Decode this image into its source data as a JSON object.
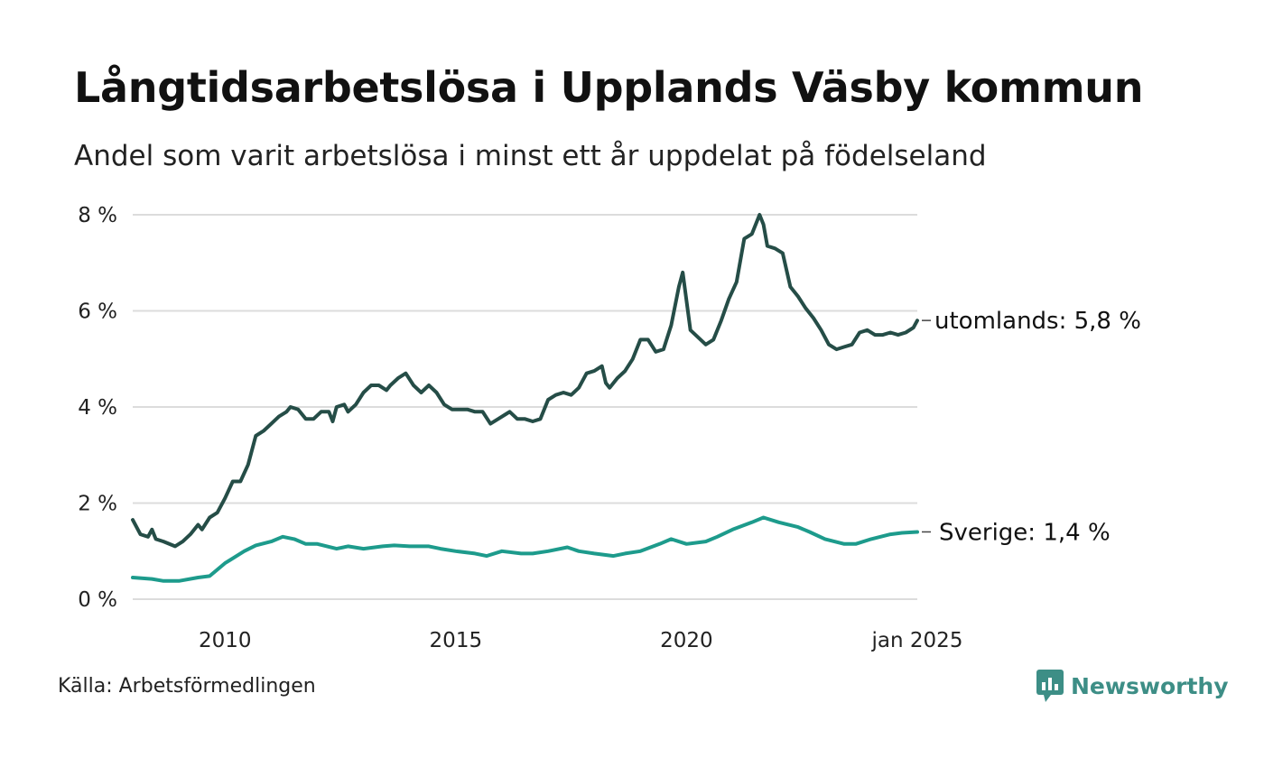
{
  "title": "Långtidsarbetslösa i Upplands Väsby kommun",
  "subtitle": "Andel som varit arbetslösa i minst ett år uppdelat på födelseland",
  "source": "Källa: Arbetsförmedlingen",
  "brand": {
    "name": "Newsworthy",
    "icon": "newsworthy-logo-icon",
    "color": "#3d8e86"
  },
  "chart_data": {
    "type": "line",
    "x_start": "2008-01",
    "x_end": "2025-01",
    "x_tick_labels": [
      "2010",
      "2015",
      "2020",
      "jan 2025"
    ],
    "x_tick_values": [
      "2010-01",
      "2015-01",
      "2020-01",
      "2025-01"
    ],
    "y_tick_labels": [
      "0 %",
      "2 %",
      "4 %",
      "6 %",
      "8 %"
    ],
    "y_tick_values": [
      0,
      2,
      4,
      6,
      8
    ],
    "ylim": [
      0,
      8
    ],
    "grid": true,
    "series": [
      {
        "name": "utomlands",
        "end_label": "utomlands: 5,8 %",
        "color": "#254d47",
        "points": [
          [
            "2008-01",
            1.65
          ],
          [
            "2008-03",
            1.35
          ],
          [
            "2008-05",
            1.3
          ],
          [
            "2008-06",
            1.45
          ],
          [
            "2008-07",
            1.25
          ],
          [
            "2008-09",
            1.2
          ],
          [
            "2008-12",
            1.1
          ],
          [
            "2009-02",
            1.2
          ],
          [
            "2009-04",
            1.35
          ],
          [
            "2009-06",
            1.55
          ],
          [
            "2009-07",
            1.45
          ],
          [
            "2009-09",
            1.7
          ],
          [
            "2009-11",
            1.8
          ],
          [
            "2010-01",
            2.1
          ],
          [
            "2010-03",
            2.45
          ],
          [
            "2010-05",
            2.45
          ],
          [
            "2010-07",
            2.8
          ],
          [
            "2010-09",
            3.4
          ],
          [
            "2010-11",
            3.5
          ],
          [
            "2011-01",
            3.65
          ],
          [
            "2011-03",
            3.8
          ],
          [
            "2011-05",
            3.9
          ],
          [
            "2011-06",
            4.0
          ],
          [
            "2011-08",
            3.95
          ],
          [
            "2011-10",
            3.75
          ],
          [
            "2011-12",
            3.75
          ],
          [
            "2012-02",
            3.9
          ],
          [
            "2012-04",
            3.9
          ],
          [
            "2012-05",
            3.7
          ],
          [
            "2012-06",
            4.0
          ],
          [
            "2012-08",
            4.05
          ],
          [
            "2012-09",
            3.9
          ],
          [
            "2012-11",
            4.05
          ],
          [
            "2013-01",
            4.3
          ],
          [
            "2013-03",
            4.45
          ],
          [
            "2013-05",
            4.45
          ],
          [
            "2013-07",
            4.35
          ],
          [
            "2013-08",
            4.45
          ],
          [
            "2013-10",
            4.6
          ],
          [
            "2013-12",
            4.7
          ],
          [
            "2014-02",
            4.45
          ],
          [
            "2014-04",
            4.3
          ],
          [
            "2014-06",
            4.45
          ],
          [
            "2014-08",
            4.3
          ],
          [
            "2014-10",
            4.05
          ],
          [
            "2014-12",
            3.95
          ],
          [
            "2015-02",
            3.95
          ],
          [
            "2015-04",
            3.95
          ],
          [
            "2015-06",
            3.9
          ],
          [
            "2015-08",
            3.9
          ],
          [
            "2015-10",
            3.65
          ],
          [
            "2015-12",
            3.75
          ],
          [
            "2016-02",
            3.85
          ],
          [
            "2016-03",
            3.9
          ],
          [
            "2016-05",
            3.75
          ],
          [
            "2016-07",
            3.75
          ],
          [
            "2016-09",
            3.7
          ],
          [
            "2016-11",
            3.75
          ],
          [
            "2017-01",
            4.15
          ],
          [
            "2017-03",
            4.25
          ],
          [
            "2017-05",
            4.3
          ],
          [
            "2017-07",
            4.25
          ],
          [
            "2017-09",
            4.4
          ],
          [
            "2017-11",
            4.7
          ],
          [
            "2018-01",
            4.75
          ],
          [
            "2018-03",
            4.85
          ],
          [
            "2018-04",
            4.5
          ],
          [
            "2018-05",
            4.4
          ],
          [
            "2018-07",
            4.6
          ],
          [
            "2018-09",
            4.75
          ],
          [
            "2018-11",
            5.0
          ],
          [
            "2019-01",
            5.4
          ],
          [
            "2019-03",
            5.4
          ],
          [
            "2019-05",
            5.15
          ],
          [
            "2019-07",
            5.2
          ],
          [
            "2019-09",
            5.7
          ],
          [
            "2019-11",
            6.5
          ],
          [
            "2019-12",
            6.8
          ],
          [
            "2020-02",
            5.6
          ],
          [
            "2020-04",
            5.45
          ],
          [
            "2020-06",
            5.3
          ],
          [
            "2020-08",
            5.4
          ],
          [
            "2020-10",
            5.8
          ],
          [
            "2020-12",
            6.25
          ],
          [
            "2021-02",
            6.6
          ],
          [
            "2021-04",
            7.5
          ],
          [
            "2021-06",
            7.6
          ],
          [
            "2021-08",
            8.0
          ],
          [
            "2021-09",
            7.8
          ],
          [
            "2021-10",
            7.35
          ],
          [
            "2021-12",
            7.3
          ],
          [
            "2022-02",
            7.2
          ],
          [
            "2022-04",
            6.5
          ],
          [
            "2022-06",
            6.3
          ],
          [
            "2022-08",
            6.05
          ],
          [
            "2022-10",
            5.85
          ],
          [
            "2022-12",
            5.6
          ],
          [
            "2023-02",
            5.3
          ],
          [
            "2023-04",
            5.2
          ],
          [
            "2023-06",
            5.25
          ],
          [
            "2023-08",
            5.3
          ],
          [
            "2023-10",
            5.55
          ],
          [
            "2023-12",
            5.6
          ],
          [
            "2024-02",
            5.5
          ],
          [
            "2024-04",
            5.5
          ],
          [
            "2024-06",
            5.55
          ],
          [
            "2024-08",
            5.5
          ],
          [
            "2024-10",
            5.55
          ],
          [
            "2024-12",
            5.65
          ],
          [
            "2025-01",
            5.8
          ]
        ]
      },
      {
        "name": "Sverige",
        "end_label": "Sverige: 1,4 %",
        "color": "#1d9b8c",
        "points": [
          [
            "2008-01",
            0.45
          ],
          [
            "2008-06",
            0.42
          ],
          [
            "2008-09",
            0.38
          ],
          [
            "2009-01",
            0.38
          ],
          [
            "2009-06",
            0.45
          ],
          [
            "2009-09",
            0.48
          ],
          [
            "2010-01",
            0.75
          ],
          [
            "2010-06",
            1.0
          ],
          [
            "2010-09",
            1.12
          ],
          [
            "2011-01",
            1.2
          ],
          [
            "2011-04",
            1.3
          ],
          [
            "2011-07",
            1.25
          ],
          [
            "2011-10",
            1.15
          ],
          [
            "2012-01",
            1.15
          ],
          [
            "2012-06",
            1.05
          ],
          [
            "2012-09",
            1.1
          ],
          [
            "2013-01",
            1.05
          ],
          [
            "2013-06",
            1.1
          ],
          [
            "2013-09",
            1.12
          ],
          [
            "2014-01",
            1.1
          ],
          [
            "2014-06",
            1.1
          ],
          [
            "2014-09",
            1.05
          ],
          [
            "2015-01",
            1.0
          ],
          [
            "2015-06",
            0.95
          ],
          [
            "2015-09",
            0.9
          ],
          [
            "2016-01",
            1.0
          ],
          [
            "2016-06",
            0.95
          ],
          [
            "2016-09",
            0.95
          ],
          [
            "2017-01",
            1.0
          ],
          [
            "2017-06",
            1.08
          ],
          [
            "2017-09",
            1.0
          ],
          [
            "2018-01",
            0.95
          ],
          [
            "2018-06",
            0.9
          ],
          [
            "2018-09",
            0.95
          ],
          [
            "2019-01",
            1.0
          ],
          [
            "2019-06",
            1.15
          ],
          [
            "2019-09",
            1.25
          ],
          [
            "2020-01",
            1.15
          ],
          [
            "2020-06",
            1.2
          ],
          [
            "2020-09",
            1.3
          ],
          [
            "2021-01",
            1.45
          ],
          [
            "2021-06",
            1.6
          ],
          [
            "2021-09",
            1.7
          ],
          [
            "2022-01",
            1.6
          ],
          [
            "2022-06",
            1.5
          ],
          [
            "2022-09",
            1.4
          ],
          [
            "2023-01",
            1.25
          ],
          [
            "2023-06",
            1.15
          ],
          [
            "2023-09",
            1.15
          ],
          [
            "2024-01",
            1.25
          ],
          [
            "2024-06",
            1.35
          ],
          [
            "2024-09",
            1.38
          ],
          [
            "2025-01",
            1.4
          ]
        ]
      }
    ]
  }
}
